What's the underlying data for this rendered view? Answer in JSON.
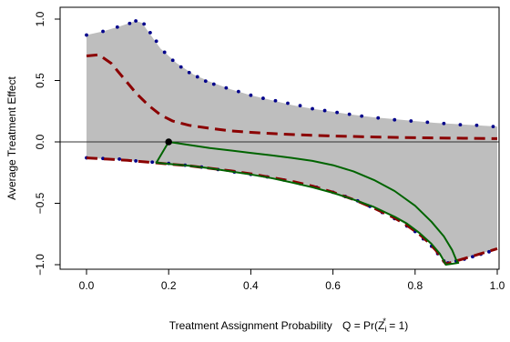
{
  "chart_data": {
    "type": "line",
    "title": "",
    "xlabel": "Treatment Assignment Probability",
    "xlabel_formula": "Q = Pr(Z* i = 1)",
    "ylabel": "Average Treatment Effect",
    "xlim": [
      0.0,
      1.0
    ],
    "ylim": [
      -1.0,
      1.0
    ],
    "x_ticks": [
      0.0,
      0.2,
      0.4,
      0.6,
      0.8,
      1.0
    ],
    "x_tick_labels": [
      "0.0",
      "0.2",
      "0.4",
      "0.6",
      "0.8",
      "1.0"
    ],
    "y_ticks": [
      -1.0,
      -0.5,
      0.0,
      0.5,
      1.0
    ],
    "y_tick_labels": [
      "−1.0",
      "−0.5",
      "0.0",
      "0.5",
      "1.0"
    ],
    "reference_line": {
      "y": 0.0,
      "color": "#333333"
    },
    "shaded_region": {
      "color": "#bebebe",
      "upper": [
        [
          0.0,
          0.87
        ],
        [
          0.04,
          0.9
        ],
        [
          0.08,
          0.94
        ],
        [
          0.12,
          0.985
        ],
        [
          0.135,
          0.97
        ],
        [
          0.15,
          0.9
        ],
        [
          0.18,
          0.76
        ],
        [
          0.22,
          0.64
        ],
        [
          0.26,
          0.55
        ],
        [
          0.3,
          0.49
        ],
        [
          0.35,
          0.43
        ],
        [
          0.4,
          0.38
        ],
        [
          0.45,
          0.34
        ],
        [
          0.5,
          0.3
        ],
        [
          0.55,
          0.27
        ],
        [
          0.6,
          0.245
        ],
        [
          0.65,
          0.22
        ],
        [
          0.7,
          0.2
        ],
        [
          0.75,
          0.185
        ],
        [
          0.8,
          0.17
        ],
        [
          0.85,
          0.155
        ],
        [
          0.9,
          0.145
        ],
        [
          0.95,
          0.135
        ],
        [
          1.0,
          0.125
        ]
      ],
      "lower": [
        [
          0.0,
          -0.13
        ],
        [
          0.05,
          -0.14
        ],
        [
          0.1,
          -0.15
        ],
        [
          0.15,
          -0.165
        ],
        [
          0.2,
          -0.18
        ],
        [
          0.25,
          -0.195
        ],
        [
          0.3,
          -0.215
        ],
        [
          0.35,
          -0.235
        ],
        [
          0.4,
          -0.26
        ],
        [
          0.45,
          -0.29
        ],
        [
          0.5,
          -0.32
        ],
        [
          0.55,
          -0.36
        ],
        [
          0.6,
          -0.41
        ],
        [
          0.65,
          -0.47
        ],
        [
          0.7,
          -0.54
        ],
        [
          0.75,
          -0.62
        ],
        [
          0.78,
          -0.68
        ],
        [
          0.81,
          -0.75
        ],
        [
          0.83,
          -0.81
        ],
        [
          0.85,
          -0.88
        ],
        [
          0.865,
          -0.95
        ],
        [
          0.875,
          -0.995
        ],
        [
          0.9,
          -0.97
        ],
        [
          0.95,
          -0.92
        ],
        [
          1.0,
          -0.87
        ]
      ]
    },
    "series": [
      {
        "style": "dotted-points",
        "color": "#00008b",
        "values": [
          [
            0.0,
            0.87
          ],
          [
            0.04,
            0.9
          ],
          [
            0.075,
            0.935
          ],
          [
            0.105,
            0.965
          ],
          [
            0.12,
            0.985
          ],
          [
            0.14,
            0.96
          ],
          [
            0.155,
            0.89
          ],
          [
            0.17,
            0.82
          ],
          [
            0.19,
            0.73
          ],
          [
            0.21,
            0.665
          ],
          [
            0.23,
            0.61
          ],
          [
            0.25,
            0.565
          ],
          [
            0.27,
            0.53
          ],
          [
            0.29,
            0.495
          ],
          [
            0.31,
            0.47
          ],
          [
            0.34,
            0.44
          ],
          [
            0.37,
            0.41
          ],
          [
            0.4,
            0.38
          ],
          [
            0.43,
            0.355
          ],
          [
            0.46,
            0.335
          ],
          [
            0.49,
            0.315
          ],
          [
            0.52,
            0.295
          ],
          [
            0.55,
            0.27
          ],
          [
            0.58,
            0.255
          ],
          [
            0.61,
            0.24
          ],
          [
            0.64,
            0.225
          ],
          [
            0.67,
            0.21
          ],
          [
            0.71,
            0.195
          ],
          [
            0.75,
            0.18
          ],
          [
            0.79,
            0.17
          ],
          [
            0.83,
            0.16
          ],
          [
            0.87,
            0.15
          ],
          [
            0.91,
            0.14
          ],
          [
            0.95,
            0.135
          ],
          [
            0.99,
            0.125
          ],
          [
            0.0,
            -0.13
          ],
          [
            0.04,
            -0.135
          ],
          [
            0.08,
            -0.14
          ],
          [
            0.12,
            -0.155
          ],
          [
            0.16,
            -0.165
          ],
          [
            0.2,
            -0.175
          ],
          [
            0.24,
            -0.19
          ],
          [
            0.28,
            -0.205
          ],
          [
            0.32,
            -0.225
          ],
          [
            0.36,
            -0.245
          ],
          [
            0.4,
            -0.265
          ],
          [
            0.44,
            -0.285
          ],
          [
            0.48,
            -0.31
          ],
          [
            0.52,
            -0.34
          ],
          [
            0.56,
            -0.37
          ],
          [
            0.6,
            -0.41
          ],
          [
            0.63,
            -0.445
          ],
          [
            0.66,
            -0.48
          ],
          [
            0.69,
            -0.525
          ],
          [
            0.72,
            -0.575
          ],
          [
            0.75,
            -0.625
          ],
          [
            0.78,
            -0.685
          ],
          [
            0.8,
            -0.73
          ],
          [
            0.82,
            -0.79
          ],
          [
            0.84,
            -0.85
          ],
          [
            0.855,
            -0.91
          ],
          [
            0.87,
            -0.97
          ],
          [
            0.88,
            -0.985
          ],
          [
            0.9,
            -0.97
          ],
          [
            0.92,
            -0.955
          ],
          [
            0.94,
            -0.935
          ],
          [
            0.96,
            -0.915
          ],
          [
            0.98,
            -0.895
          ]
        ]
      },
      {
        "style": "dashed",
        "color": "#8b0000",
        "values": [
          [
            0.0,
            0.7
          ],
          [
            0.03,
            0.71
          ],
          [
            0.06,
            0.64
          ],
          [
            0.09,
            0.52
          ],
          [
            0.12,
            0.4
          ],
          [
            0.15,
            0.3
          ],
          [
            0.18,
            0.22
          ],
          [
            0.21,
            0.17
          ],
          [
            0.25,
            0.135
          ],
          [
            0.3,
            0.11
          ],
          [
            0.35,
            0.09
          ],
          [
            0.4,
            0.078
          ],
          [
            0.45,
            0.068
          ],
          [
            0.5,
            0.06
          ],
          [
            0.55,
            0.053
          ],
          [
            0.6,
            0.048
          ],
          [
            0.7,
            0.04
          ],
          [
            0.8,
            0.034
          ],
          [
            0.9,
            0.03
          ],
          [
            1.0,
            0.027
          ]
        ]
      },
      {
        "style": "dashed",
        "color": "#8b0000",
        "values": [
          [
            0.0,
            -0.13
          ],
          [
            0.05,
            -0.14
          ],
          [
            0.1,
            -0.15
          ],
          [
            0.15,
            -0.165
          ],
          [
            0.2,
            -0.18
          ],
          [
            0.25,
            -0.195
          ],
          [
            0.3,
            -0.215
          ],
          [
            0.35,
            -0.235
          ],
          [
            0.4,
            -0.26
          ],
          [
            0.45,
            -0.29
          ],
          [
            0.5,
            -0.32
          ],
          [
            0.55,
            -0.36
          ],
          [
            0.6,
            -0.41
          ],
          [
            0.65,
            -0.47
          ],
          [
            0.7,
            -0.54
          ],
          [
            0.75,
            -0.62
          ],
          [
            0.78,
            -0.68
          ],
          [
            0.81,
            -0.75
          ],
          [
            0.83,
            -0.81
          ],
          [
            0.85,
            -0.88
          ],
          [
            0.865,
            -0.95
          ],
          [
            0.875,
            -0.995
          ],
          [
            0.9,
            -0.97
          ],
          [
            0.95,
            -0.92
          ],
          [
            1.0,
            -0.87
          ]
        ]
      },
      {
        "style": "solid",
        "color": "#006400",
        "values": [
          [
            0.2,
            0.0
          ],
          [
            0.25,
            -0.025
          ],
          [
            0.3,
            -0.05
          ],
          [
            0.35,
            -0.07
          ],
          [
            0.4,
            -0.09
          ],
          [
            0.45,
            -0.11
          ],
          [
            0.5,
            -0.13
          ],
          [
            0.55,
            -0.155
          ],
          [
            0.6,
            -0.19
          ],
          [
            0.65,
            -0.24
          ],
          [
            0.7,
            -0.31
          ],
          [
            0.75,
            -0.4
          ],
          [
            0.8,
            -0.52
          ],
          [
            0.84,
            -0.65
          ],
          [
            0.87,
            -0.77
          ],
          [
            0.89,
            -0.88
          ],
          [
            0.9,
            -0.96
          ],
          [
            0.905,
            -0.985
          ],
          [
            0.875,
            -1.0
          ],
          [
            0.87,
            -0.97
          ],
          [
            0.86,
            -0.91
          ],
          [
            0.84,
            -0.83
          ],
          [
            0.81,
            -0.74
          ],
          [
            0.78,
            -0.665
          ],
          [
            0.75,
            -0.61
          ],
          [
            0.7,
            -0.53
          ],
          [
            0.65,
            -0.47
          ],
          [
            0.6,
            -0.415
          ],
          [
            0.55,
            -0.37
          ],
          [
            0.5,
            -0.33
          ],
          [
            0.45,
            -0.295
          ],
          [
            0.4,
            -0.265
          ],
          [
            0.35,
            -0.24
          ],
          [
            0.3,
            -0.215
          ],
          [
            0.25,
            -0.195
          ],
          [
            0.2,
            -0.18
          ],
          [
            0.17,
            -0.17
          ],
          [
            0.2,
            0.0
          ]
        ]
      }
    ],
    "highlight_point": {
      "x": 0.2,
      "y": 0.0,
      "color": "#000000"
    }
  }
}
